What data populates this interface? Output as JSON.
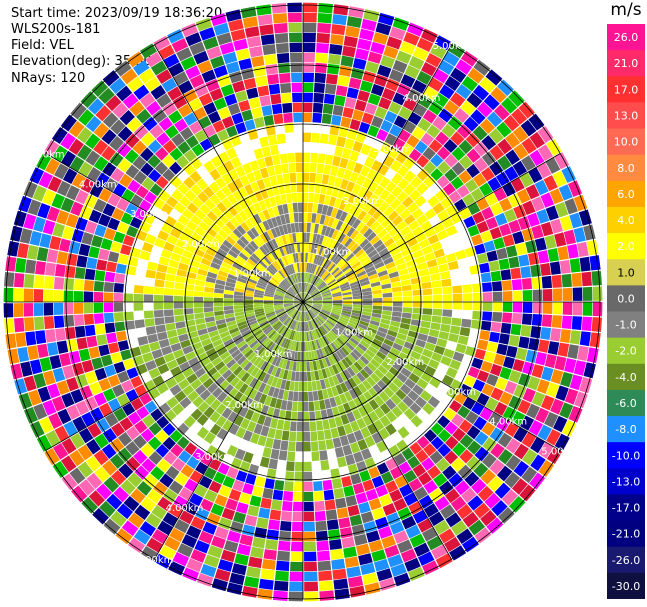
{
  "info": {
    "start_time": "Start time: 2023/09/19 18:36:20",
    "site": "WLS200s-181",
    "field": "Field: VEL",
    "elevation": "Elevation(deg): 35.30",
    "nrays": "NRays: 120"
  },
  "rings": {
    "labels": [
      "1.00km",
      "2.00km",
      "3.00km",
      "4.00km",
      "5.00km"
    ]
  },
  "colorbar": {
    "unit": "m/s",
    "ticks": [
      "26.0",
      "21.0",
      "17.0",
      "13.0",
      "10.0",
      "8.0",
      "6.0",
      "4.0",
      "2.0",
      "1.0",
      "0.0",
      "-1.0",
      "-2.0",
      "-4.0",
      "-6.0",
      "-8.0",
      "-10.0",
      "-13.0",
      "-17.0",
      "-21.0",
      "-26.0",
      "-30.0"
    ],
    "colors": [
      "#ff1493",
      "#ff2a6a",
      "#ff3030",
      "#ff4d4d",
      "#ff6a55",
      "#ff8a40",
      "#ffa500",
      "#ffd000",
      "#ffff00",
      "#d8d050",
      "#696969",
      "#808080",
      "#9acd32",
      "#6b8e23",
      "#2e8b57",
      "#1e90ff",
      "#0000ff",
      "#0000cd",
      "#00008b",
      "#000080",
      "#191970",
      "#101040"
    ]
  },
  "plot": {
    "ray_count": 120,
    "gate_count": 30
  }
}
